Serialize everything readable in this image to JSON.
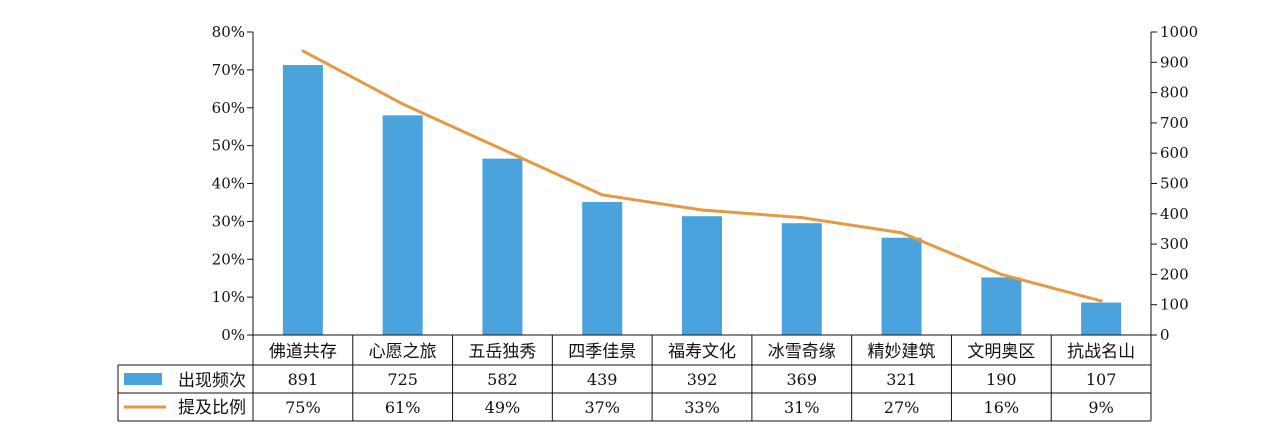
{
  "chart_data": {
    "type": "bar",
    "categories": [
      "佛道共存",
      "心愿之旅",
      "五岳独秀",
      "四季佳景",
      "福寿文化",
      "冰雪奇缘",
      "精妙建筑",
      "文明奥区",
      "抗战名山"
    ],
    "series": [
      {
        "name": "出现频次",
        "type": "bar",
        "axis": "right",
        "values": [
          891,
          725,
          582,
          439,
          392,
          369,
          321,
          190,
          107
        ],
        "labels": [
          "891",
          "725",
          "582",
          "439",
          "392",
          "369",
          "321",
          "190",
          "107"
        ],
        "color": "#4aa3dd"
      },
      {
        "name": "提及比例",
        "type": "line",
        "axis": "left",
        "values": [
          75,
          61,
          49,
          37,
          33,
          31,
          27,
          16,
          9
        ],
        "labels": [
          "75%",
          "61%",
          "49%",
          "37%",
          "33%",
          "31%",
          "27%",
          "16%",
          "9%"
        ],
        "color": "#e39a43"
      }
    ],
    "y_left": {
      "range": [
        0,
        80
      ],
      "ticks": [
        "0%",
        "10%",
        "20%",
        "30%",
        "40%",
        "50%",
        "60%",
        "70%",
        "80%"
      ]
    },
    "y_right": {
      "range": [
        0,
        1000
      ],
      "ticks": [
        "0",
        "100",
        "200",
        "300",
        "400",
        "500",
        "600",
        "700",
        "800",
        "900",
        "1000"
      ]
    },
    "grid": false,
    "legend": "table-left"
  }
}
